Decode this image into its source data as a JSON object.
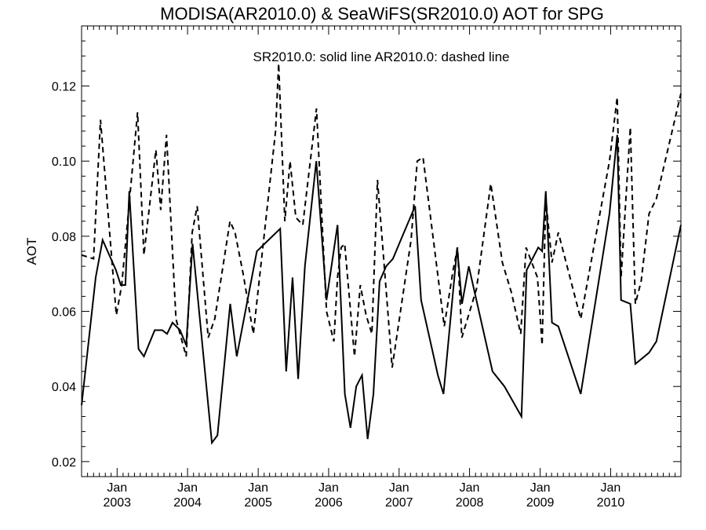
{
  "chart_data": {
    "type": "line",
    "title": "MODISA(AR2010.0) & SeaWiFS(SR2010.0)  AOT for SPG",
    "annotation": "SR2010.0: solid line   AR2010.0: dashed line",
    "xlabel": "",
    "ylabel": "AOT",
    "xlim": [
      "2002-07-01",
      "2010-12-31"
    ],
    "ylim": [
      0.016,
      0.136
    ],
    "y_ticks": [
      0.02,
      0.04,
      0.06,
      0.08,
      0.1,
      0.12
    ],
    "y_tick_labels": [
      "0.02",
      "0.04",
      "0.06",
      "0.08",
      "0.10",
      "0.12"
    ],
    "x_ticks": [
      {
        "date": "2003-01-01",
        "month": "Jan",
        "year": "2003"
      },
      {
        "date": "2004-01-01",
        "month": "Jan",
        "year": "2004"
      },
      {
        "date": "2005-01-01",
        "month": "Jan",
        "year": "2005"
      },
      {
        "date": "2006-01-01",
        "month": "Jan",
        "year": "2006"
      },
      {
        "date": "2007-01-01",
        "month": "Jan",
        "year": "2007"
      },
      {
        "date": "2008-01-01",
        "month": "Jan",
        "year": "2008"
      },
      {
        "date": "2009-01-01",
        "month": "Jan",
        "year": "2009"
      },
      {
        "date": "2010-01-01",
        "month": "Jan",
        "year": "2010"
      }
    ],
    "grid": false,
    "series": [
      {
        "style": "solid",
        "color": "#000000",
        "points": [
          [
            "2002-07-01",
            0.035
          ],
          [
            "2002-09-12",
            0.069
          ],
          [
            "2002-10-18",
            0.079
          ],
          [
            "2002-12-26",
            0.071
          ],
          [
            "2003-01-20",
            0.067
          ],
          [
            "2003-02-13",
            0.067
          ],
          [
            "2003-03-05",
            0.092
          ],
          [
            "2003-04-22",
            0.05
          ],
          [
            "2003-05-20",
            0.048
          ],
          [
            "2003-07-15",
            0.055
          ],
          [
            "2003-08-23",
            0.055
          ],
          [
            "2003-09-17",
            0.054
          ],
          [
            "2003-10-15",
            0.057
          ],
          [
            "2003-11-23",
            0.055
          ],
          [
            "2003-12-25",
            0.051
          ],
          [
            "2004-01-27",
            0.078
          ],
          [
            "2004-05-06",
            0.025
          ],
          [
            "2004-06-04",
            0.027
          ],
          [
            "2004-08-09",
            0.062
          ],
          [
            "2004-09-12",
            0.048
          ],
          [
            "2004-12-25",
            0.076
          ],
          [
            "2005-04-25",
            0.082
          ],
          [
            "2005-05-26",
            0.044
          ],
          [
            "2005-06-28",
            0.069
          ],
          [
            "2005-07-27",
            0.042
          ],
          [
            "2005-08-31",
            0.072
          ],
          [
            "2005-10-29",
            0.1
          ],
          [
            "2005-12-21",
            0.063
          ],
          [
            "2006-02-16",
            0.083
          ],
          [
            "2006-03-26",
            0.038
          ],
          [
            "2006-04-24",
            0.029
          ],
          [
            "2006-05-24",
            0.04
          ],
          [
            "2006-06-23",
            0.043
          ],
          [
            "2006-07-22",
            0.026
          ],
          [
            "2006-08-21",
            0.038
          ],
          [
            "2006-09-22",
            0.068
          ],
          [
            "2006-10-26",
            0.072
          ],
          [
            "2006-11-30",
            0.074
          ],
          [
            "2007-01-26",
            0.081
          ],
          [
            "2007-03-25",
            0.088
          ],
          [
            "2007-04-25",
            0.063
          ],
          [
            "2007-07-21",
            0.043
          ],
          [
            "2007-08-19",
            0.038
          ],
          [
            "2007-10-29",
            0.077
          ],
          [
            "2007-11-23",
            0.062
          ],
          [
            "2007-12-28",
            0.072
          ],
          [
            "2008-04-29",
            0.044
          ],
          [
            "2008-06-30",
            0.04
          ],
          [
            "2008-09-26",
            0.032
          ],
          [
            "2008-10-23",
            0.071
          ],
          [
            "2008-12-22",
            0.077
          ],
          [
            "2009-01-11",
            0.076
          ],
          [
            "2009-01-30",
            0.092
          ],
          [
            "2009-03-03",
            0.057
          ],
          [
            "2009-04-05",
            0.056
          ],
          [
            "2009-07-30",
            0.038
          ],
          [
            "2009-12-26",
            0.086
          ],
          [
            "2010-02-04",
            0.107
          ],
          [
            "2010-02-24",
            0.063
          ],
          [
            "2010-04-13",
            0.062
          ],
          [
            "2010-05-09",
            0.046
          ],
          [
            "2010-07-19",
            0.049
          ],
          [
            "2010-08-26",
            0.052
          ],
          [
            "2010-12-31",
            0.083
          ]
        ]
      },
      {
        "style": "dashed",
        "color": "#000000",
        "points": [
          [
            "2002-07-01",
            0.075
          ],
          [
            "2002-09-01",
            0.074
          ],
          [
            "2002-10-07",
            0.111
          ],
          [
            "2002-12-28",
            0.059
          ],
          [
            "2003-01-25",
            0.067
          ],
          [
            "2003-04-17",
            0.113
          ],
          [
            "2003-05-20",
            0.075
          ],
          [
            "2003-07-21",
            0.103
          ],
          [
            "2003-08-15",
            0.087
          ],
          [
            "2003-09-14",
            0.107
          ],
          [
            "2003-11-02",
            0.058
          ],
          [
            "2003-12-25",
            0.048
          ],
          [
            "2004-01-25",
            0.081
          ],
          [
            "2004-02-20",
            0.088
          ],
          [
            "2004-04-17",
            0.053
          ],
          [
            "2004-05-21",
            0.058
          ],
          [
            "2004-08-08",
            0.084
          ],
          [
            "2004-09-03",
            0.081
          ],
          [
            "2004-10-15",
            0.07
          ],
          [
            "2004-12-07",
            0.054
          ],
          [
            "2005-04-01",
            0.108
          ],
          [
            "2005-04-17",
            0.126
          ],
          [
            "2005-05-19",
            0.084
          ],
          [
            "2005-06-15",
            0.1
          ],
          [
            "2005-07-15",
            0.085
          ],
          [
            "2005-08-20",
            0.083
          ],
          [
            "2005-10-30",
            0.114
          ],
          [
            "2005-12-21",
            0.06
          ],
          [
            "2006-01-28",
            0.052
          ],
          [
            "2006-02-16",
            0.069
          ],
          [
            "2006-03-07",
            0.077
          ],
          [
            "2006-03-25",
            0.078
          ],
          [
            "2006-05-15",
            0.048
          ],
          [
            "2006-06-14",
            0.067
          ],
          [
            "2006-07-14",
            0.059
          ],
          [
            "2006-08-13",
            0.054
          ],
          [
            "2006-09-11",
            0.095
          ],
          [
            "2006-11-02",
            0.061
          ],
          [
            "2006-11-26",
            0.045
          ],
          [
            "2007-03-04",
            0.079
          ],
          [
            "2007-04-05",
            0.1
          ],
          [
            "2007-05-05",
            0.101
          ],
          [
            "2007-08-23",
            0.056
          ],
          [
            "2007-10-08",
            0.071
          ],
          [
            "2007-10-31",
            0.077
          ],
          [
            "2007-11-22",
            0.053
          ],
          [
            "2008-02-06",
            0.066
          ],
          [
            "2008-04-20",
            0.094
          ],
          [
            "2008-06-19",
            0.073
          ],
          [
            "2008-08-05",
            0.065
          ],
          [
            "2008-09-22",
            0.054
          ],
          [
            "2008-10-20",
            0.077
          ],
          [
            "2008-12-18",
            0.069
          ],
          [
            "2009-01-11",
            0.051
          ],
          [
            "2009-01-30",
            0.09
          ],
          [
            "2009-03-03",
            0.073
          ],
          [
            "2009-04-05",
            0.081
          ],
          [
            "2009-07-30",
            0.058
          ],
          [
            "2009-12-26",
            0.1
          ],
          [
            "2010-02-04",
            0.117
          ],
          [
            "2010-02-24",
            0.069
          ],
          [
            "2010-04-13",
            0.109
          ],
          [
            "2010-05-09",
            0.062
          ],
          [
            "2010-06-08",
            0.068
          ],
          [
            "2010-07-19",
            0.086
          ],
          [
            "2010-08-26",
            0.09
          ],
          [
            "2010-12-31",
            0.118
          ]
        ]
      }
    ]
  }
}
